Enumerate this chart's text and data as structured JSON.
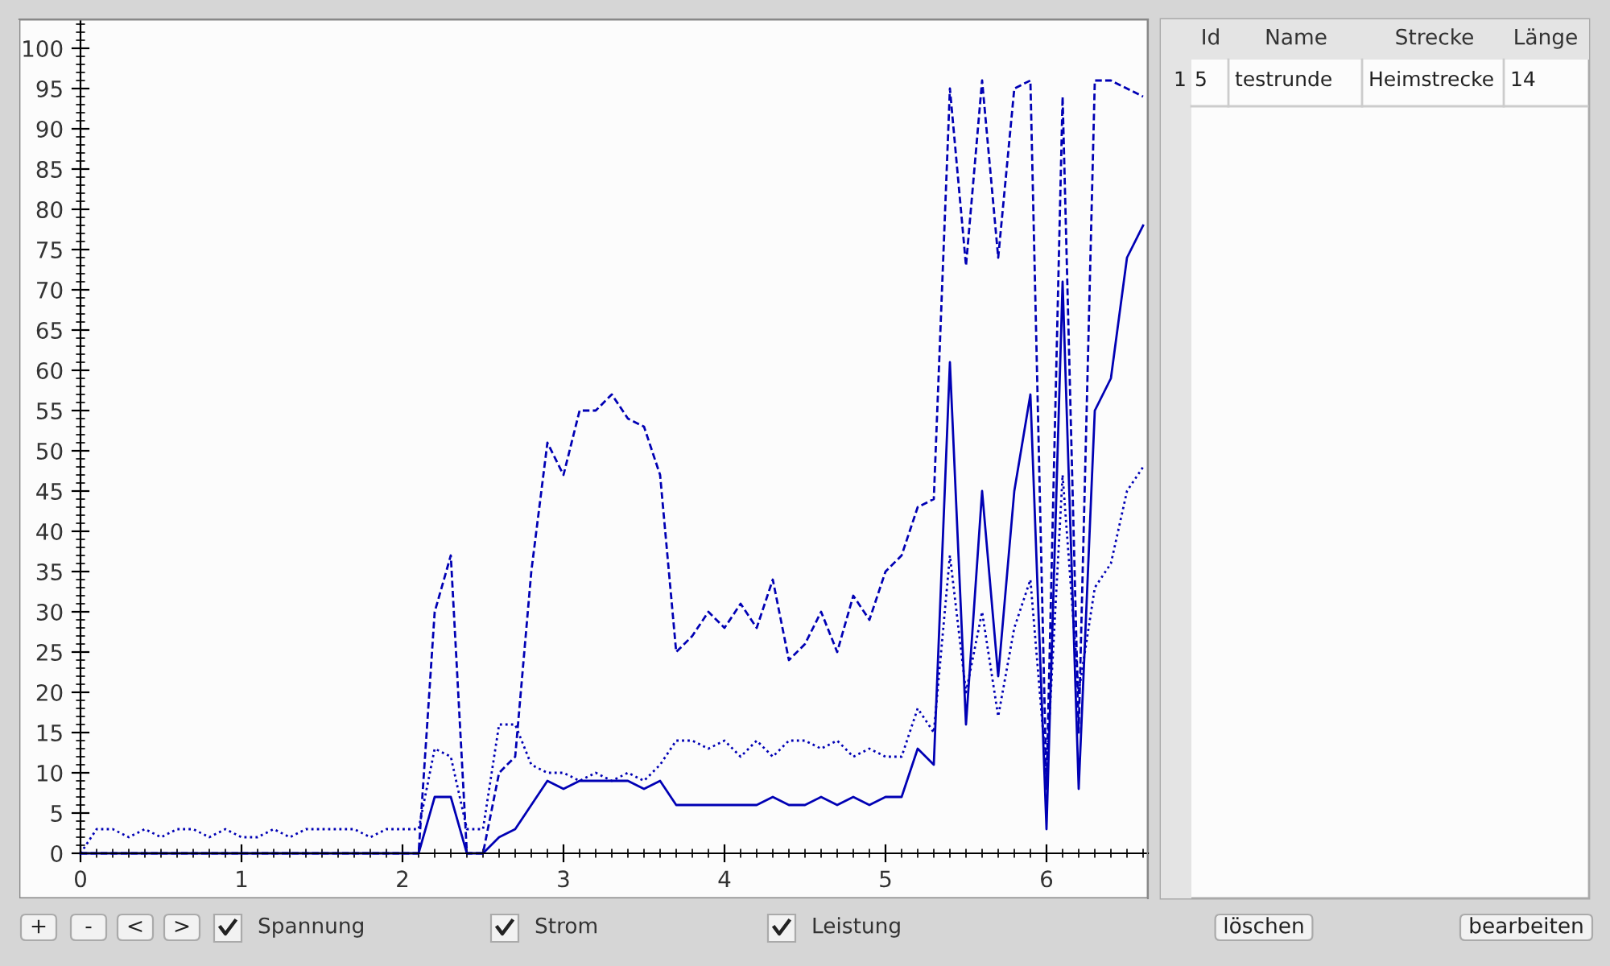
{
  "chart_data": [
    {
      "type": "line",
      "x": [
        0,
        0.1,
        0.2,
        0.3,
        0.4,
        0.5,
        0.6,
        0.7,
        0.8,
        0.9,
        1.0,
        1.1,
        1.2,
        1.3,
        1.4,
        1.5,
        1.6,
        1.7,
        1.8,
        1.9,
        2.0,
        2.1,
        2.2,
        2.3,
        2.4,
        2.5,
        2.6,
        2.7,
        2.8,
        2.9,
        3.0,
        3.1,
        3.2,
        3.3,
        3.4,
        3.5,
        3.6,
        3.7,
        3.8,
        3.9,
        4.0,
        4.1,
        4.2,
        4.3,
        4.4,
        4.5,
        4.6,
        4.7,
        4.8,
        4.9,
        5.0,
        5.1,
        5.2,
        5.3,
        5.4,
        5.5,
        5.6,
        5.7,
        5.8,
        5.9,
        6.0,
        6.1,
        6.2,
        6.3,
        6.4,
        6.5,
        6.6
      ],
      "series": [
        {
          "color": "#0000b4",
          "line_style": "dashed",
          "values": [
            0,
            0,
            0,
            0,
            0,
            0,
            0,
            0,
            0,
            0,
            0,
            0,
            0,
            0,
            0,
            0,
            0,
            0,
            0,
            0,
            0,
            0,
            30,
            37,
            0,
            0,
            10,
            12,
            35,
            51,
            47,
            55,
            55,
            57,
            54,
            53,
            47,
            25,
            27,
            30,
            28,
            31,
            28,
            34,
            24,
            26,
            30,
            25,
            32,
            29,
            35,
            37,
            43,
            44,
            95,
            73,
            96,
            74,
            95,
            96,
            8,
            94,
            15,
            96,
            96,
            95,
            94
          ]
        },
        {
          "color": "#0000b4",
          "line_style": "solid",
          "values": [
            0,
            0,
            0,
            0,
            0,
            0,
            0,
            0,
            0,
            0,
            0,
            0,
            0,
            0,
            0,
            0,
            0,
            0,
            0,
            0,
            0,
            0,
            7,
            7,
            0,
            0,
            2,
            3,
            6,
            9,
            8,
            9,
            9,
            9,
            9,
            8,
            9,
            6,
            6,
            6,
            6,
            6,
            6,
            7,
            6,
            6,
            7,
            6,
            7,
            6,
            7,
            7,
            13,
            11,
            61,
            16,
            45,
            22,
            45,
            57,
            3,
            71,
            8,
            55,
            59,
            74,
            78
          ]
        },
        {
          "color": "#0000b4",
          "line_style": "dotted",
          "values": [
            0,
            3,
            3,
            2,
            3,
            2,
            3,
            3,
            2,
            3,
            2,
            2,
            3,
            2,
            3,
            3,
            3,
            3,
            2,
            3,
            3,
            3,
            13,
            12,
            3,
            3,
            16,
            16,
            11,
            10,
            10,
            9,
            10,
            9,
            10,
            9,
            11,
            14,
            14,
            13,
            14,
            12,
            14,
            12,
            14,
            14,
            13,
            14,
            12,
            13,
            12,
            12,
            18,
            15,
            37,
            20,
            30,
            17,
            28,
            34,
            10,
            47,
            20,
            33,
            36,
            45,
            48
          ]
        }
      ],
      "xlim": [
        -0.38,
        6.63
      ],
      "ylim": [
        -5.6,
        103.6
      ],
      "xticks": [
        0,
        1,
        2,
        3,
        4,
        5,
        6
      ],
      "yticks": [
        0,
        5,
        10,
        15,
        20,
        25,
        30,
        35,
        40,
        45,
        50,
        55,
        60,
        65,
        70,
        75,
        80,
        85,
        90,
        95,
        100
      ],
      "legend": false
    },
    {
      "type": "other",
      "annotations": [
        "Id",
        "Name",
        "Strecke",
        "Länge",
        "1",
        "5",
        "testrunde",
        "Heimstrecke",
        "14",
        "+",
        "-",
        "<",
        ">",
        "Spannung",
        "Strom",
        "Leistung",
        "löschen",
        "bearbeiten"
      ]
    }
  ]
}
